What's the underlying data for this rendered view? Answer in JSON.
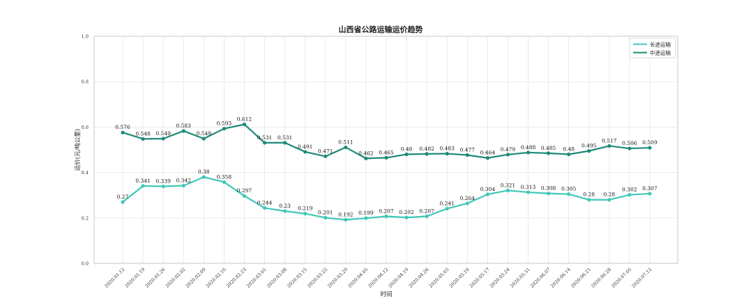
{
  "chart_data": {
    "type": "line",
    "title": "山西省公路运输运价趋势",
    "xlabel": "时间",
    "ylabel": "运价(元/吨公里)",
    "ylim": [
      0,
      1.0
    ],
    "yticks": [
      "0.0",
      "0.2",
      "0.4",
      "0.6",
      "0.8",
      "1.0"
    ],
    "grid": true,
    "legend_position": "top-right",
    "categories": [
      "2020.01.12",
      "2020.01.19",
      "2020.01.26",
      "2020.02.02",
      "2020.02.09",
      "2020.02.16",
      "2020.02.23",
      "2020.03.01",
      "2020.03.08",
      "2020.03.15",
      "2020.03.22",
      "2020.03.29",
      "2020.04.05",
      "2020.04.12",
      "2020.04.19",
      "2020.04.26",
      "2020.05.03",
      "2020.05.10",
      "2020.05.17",
      "2020.05.24",
      "2020.05.31",
      "2020.06.07",
      "2020.06.14",
      "2020.06.21",
      "2020.06.28",
      "2020.07.05",
      "2020.07.12"
    ],
    "series": [
      {
        "name": "长途运输",
        "color": "#40c8b8",
        "values": [
          0.27,
          0.341,
          0.339,
          0.342,
          0.38,
          0.358,
          0.297,
          0.244,
          0.23,
          0.219,
          0.201,
          0.192,
          0.199,
          0.207,
          0.202,
          0.207,
          0.241,
          0.264,
          0.304,
          0.321,
          0.313,
          0.308,
          0.305,
          0.28,
          0.28,
          0.302,
          0.307
        ],
        "labels": [
          "0.27",
          "0.341",
          "0.339",
          "0.342",
          "0.38",
          "0.358",
          "0.297",
          "0.244",
          "0.23",
          "0.219",
          "0.201",
          "0.192",
          "0.199",
          "0.207",
          "0.202",
          "0.207",
          "0.241",
          "0.264",
          "0.304",
          "0.321",
          "0.313",
          "0.308",
          "0.305",
          "0.28",
          "0.28",
          "0.302",
          "0.307"
        ]
      },
      {
        "name": "中途运输",
        "color": "#1e8a78",
        "values": [
          0.576,
          0.548,
          0.549,
          0.583,
          0.549,
          0.593,
          0.612,
          0.531,
          0.531,
          0.491,
          0.471,
          0.511,
          0.462,
          0.465,
          0.48,
          0.482,
          0.483,
          0.477,
          0.464,
          0.479,
          0.488,
          0.485,
          0.48,
          0.495,
          0.517,
          0.506,
          0.509
        ],
        "labels": [
          "0.576",
          "0.548",
          "0.549",
          "0.583",
          "0.549",
          "0.593",
          "0.612",
          "0.531",
          "0.531",
          "0.491",
          "0.471",
          "0.511",
          "0.462",
          "0.465",
          "0.48",
          "0.482",
          "0.483",
          "0.477",
          "0.464",
          "0.479",
          "0.488",
          "0.485",
          "0.48",
          "0.495",
          "0.517",
          "0.506",
          "0.509"
        ]
      }
    ]
  }
}
